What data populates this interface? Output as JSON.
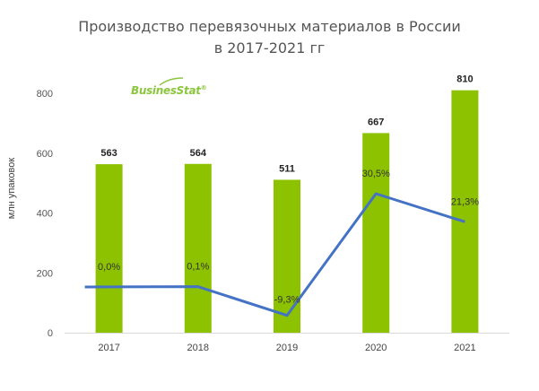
{
  "chart_data": {
    "type": "bar",
    "title_lines": [
      "Производство перевязочных материалов в России",
      "в 2017-2021 гг"
    ],
    "ylabel": "млн упаковок",
    "xlabel": "",
    "ylim": [
      0,
      800
    ],
    "yticks": [
      "0",
      "200",
      "400",
      "600",
      "800"
    ],
    "categories": [
      "2017",
      "2018",
      "2019",
      "2020",
      "2021"
    ],
    "series": [
      {
        "values": [
          563,
          564,
          511,
          667,
          810
        ],
        "labels": [
          "563",
          "564",
          "511",
          "667",
          "810"
        ],
        "color": "#8cc200"
      }
    ],
    "growth_line": {
      "values": [
        0.0,
        0.1,
        -9.3,
        30.5,
        21.3
      ],
      "labels": [
        "0,0%",
        "0,1%",
        "-9,3%",
        "30,5%",
        "21,3%"
      ],
      "color": "#4472c4"
    },
    "grid": false,
    "legend": "none"
  },
  "logo_text": "BusinesStat",
  "logo_mark": "®"
}
